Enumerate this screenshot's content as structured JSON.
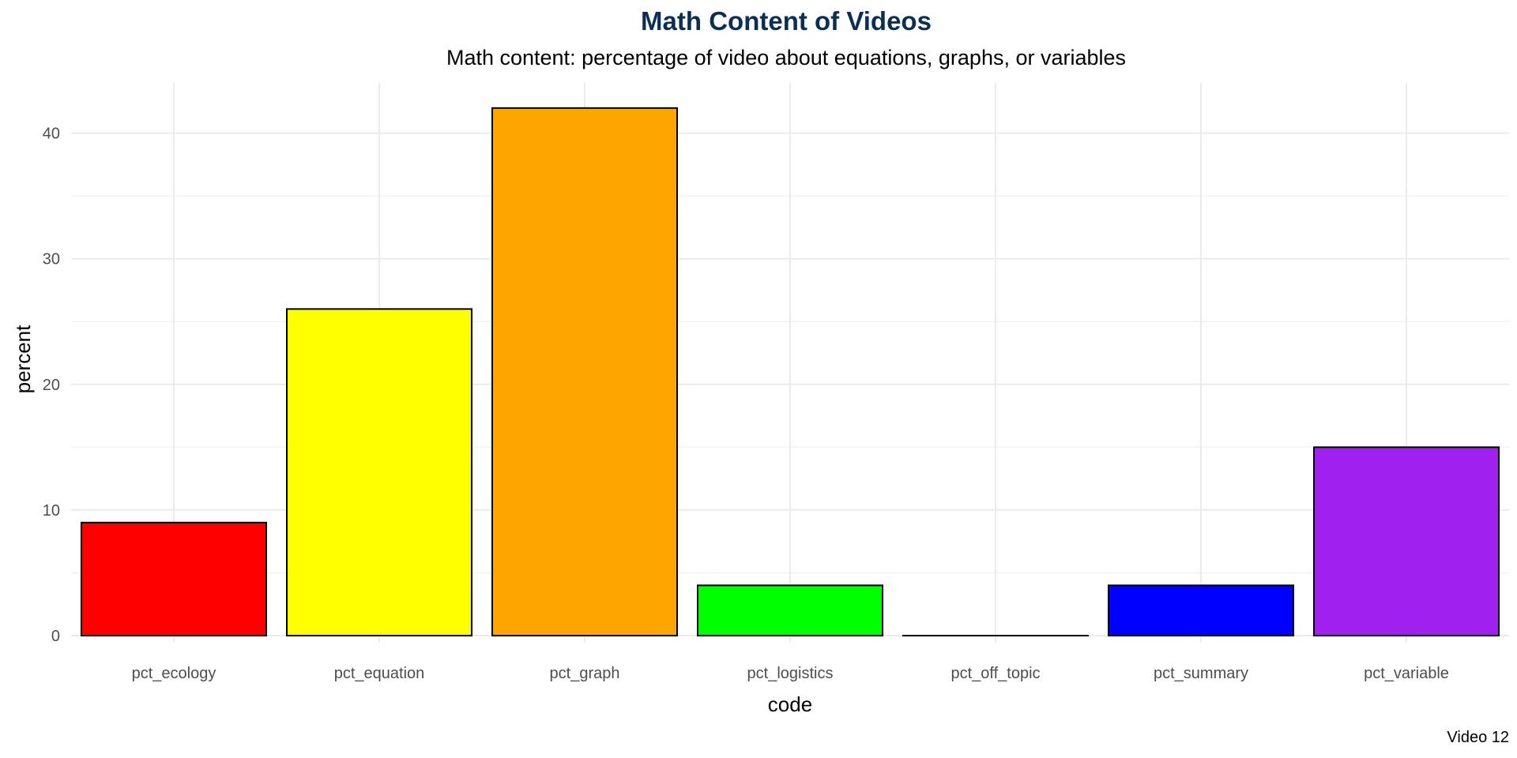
{
  "chart_data": {
    "type": "bar",
    "title": "Math Content of Videos",
    "subtitle": "Math content: percentage of video about equations, graphs, or variables",
    "xlabel": "code",
    "ylabel": "percent",
    "caption": "Video 12",
    "categories": [
      "pct_ecology",
      "pct_equation",
      "pct_graph",
      "pct_logistics",
      "pct_off_topic",
      "pct_summary",
      "pct_variable"
    ],
    "values": [
      9,
      26,
      42,
      4,
      0,
      4,
      15
    ],
    "colors": [
      "#ff0000",
      "#ffff00",
      "#ffa500",
      "#00ff00",
      "#ffffff",
      "#0000ff",
      "#a020f0"
    ],
    "ylim": [
      0,
      44
    ],
    "yticks": [
      0,
      10,
      20,
      30,
      40
    ],
    "grid": true,
    "legend": "none"
  }
}
